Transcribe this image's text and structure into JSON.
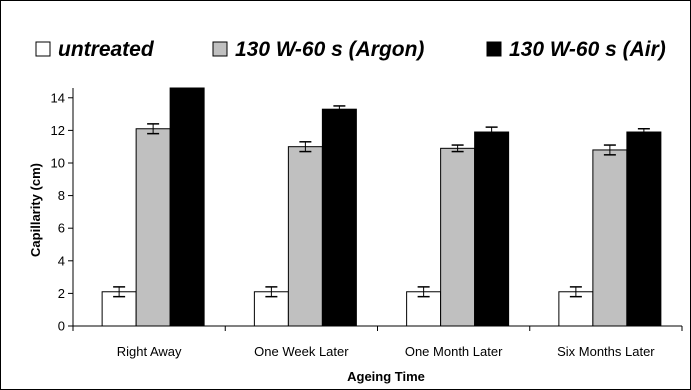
{
  "chart_data": {
    "type": "bar",
    "title": "",
    "xlabel": "Ageing Time",
    "ylabel": "Capillarity (cm)",
    "ylim": [
      0,
      14.6
    ],
    "yticks": [
      0,
      2,
      4,
      6,
      8,
      10,
      12,
      14
    ],
    "legend_position": "top",
    "categories": [
      "Right Away",
      "One Week Later",
      "One Month Later",
      "Six Months Later"
    ],
    "series": [
      {
        "name": "untreated",
        "color": "#ffffff",
        "values": [
          2.1,
          2.1,
          2.1,
          2.1
        ],
        "errors": [
          0.3,
          0.3,
          0.3,
          0.3
        ]
      },
      {
        "name": "130 W-60 s (Argon)",
        "color": "#c0c0c0",
        "values": [
          12.1,
          11.0,
          10.9,
          10.8
        ],
        "errors": [
          0.3,
          0.3,
          0.2,
          0.3
        ]
      },
      {
        "name": "130 W-60 s (Air)",
        "color": "#000000",
        "values": [
          14.6,
          13.3,
          11.9,
          11.9
        ],
        "errors": [
          0.0,
          0.2,
          0.3,
          0.2
        ]
      }
    ],
    "grid": false
  }
}
